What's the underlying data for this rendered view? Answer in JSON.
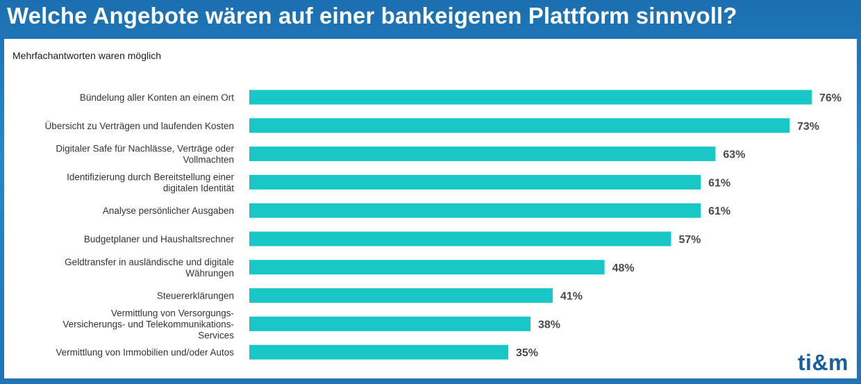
{
  "header": {
    "title": "Welche Angebote wären auf einer bankeigenen Plattform sinnvoll?"
  },
  "subtitle": "Mehrfachantworten waren möglich",
  "logo": "ti&m",
  "colors": {
    "bar": "#19c7c7",
    "label": "#333333",
    "value": "#4a4a4a"
  },
  "chart_data": {
    "type": "bar",
    "orientation": "horizontal",
    "categories": [
      "Bündelung aller Konten an einem Ort",
      "Übersicht zu Verträgen und laufenden Kosten",
      "Digitaler Safe für Nachlässe, Verträge oder\nVollmachten",
      "Identifizierung durch Bereitstellung einer\ndigitalen Identität",
      "Analyse persönlicher Ausgaben",
      "Budgetplaner und Haushaltsrechner",
      "Geldtransfer in ausländische und digitale\nWährungen",
      "Steuererklärungen",
      "Vermittlung von Versorgungs-\nVersicherungs- und Telekommunikations-\nServices",
      "Vermittlung von Immobilien und/oder Autos"
    ],
    "values": [
      76,
      73,
      63,
      61,
      61,
      57,
      48,
      41,
      38,
      35
    ],
    "value_labels": [
      "76%",
      "73%",
      "63%",
      "61%",
      "61%",
      "57%",
      "48%",
      "41%",
      "38%",
      "35%"
    ],
    "xlim": [
      0,
      76
    ],
    "grid": false
  }
}
